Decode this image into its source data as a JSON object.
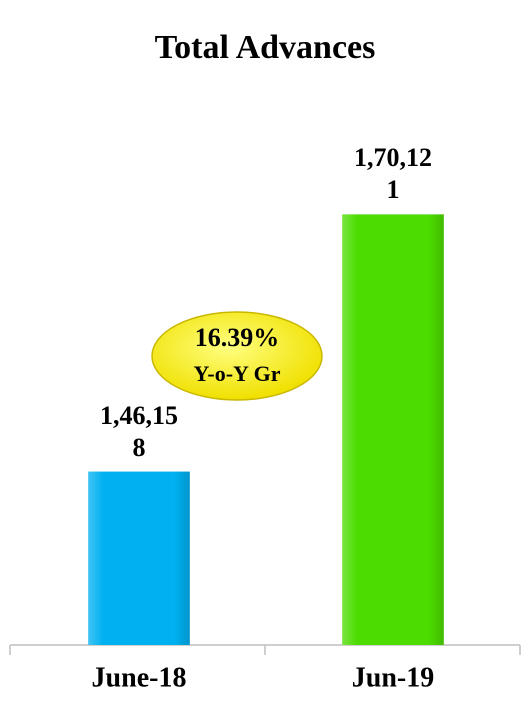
{
  "chart_data": {
    "type": "bar",
    "title": "Total Advances",
    "categories": [
      "June-18",
      "Jun-19"
    ],
    "series": [
      {
        "name": null,
        "colors": [
          "#00b0f0",
          "#4cdc00"
        ],
        "values": [
          146158,
          170121
        ],
        "value_labels": [
          "1,46,158",
          "1,70,121"
        ]
      }
    ],
    "ylim": [
      130000,
      175000
    ],
    "annotations": [
      "16.39%",
      "Y-o-Y Gr"
    ]
  }
}
